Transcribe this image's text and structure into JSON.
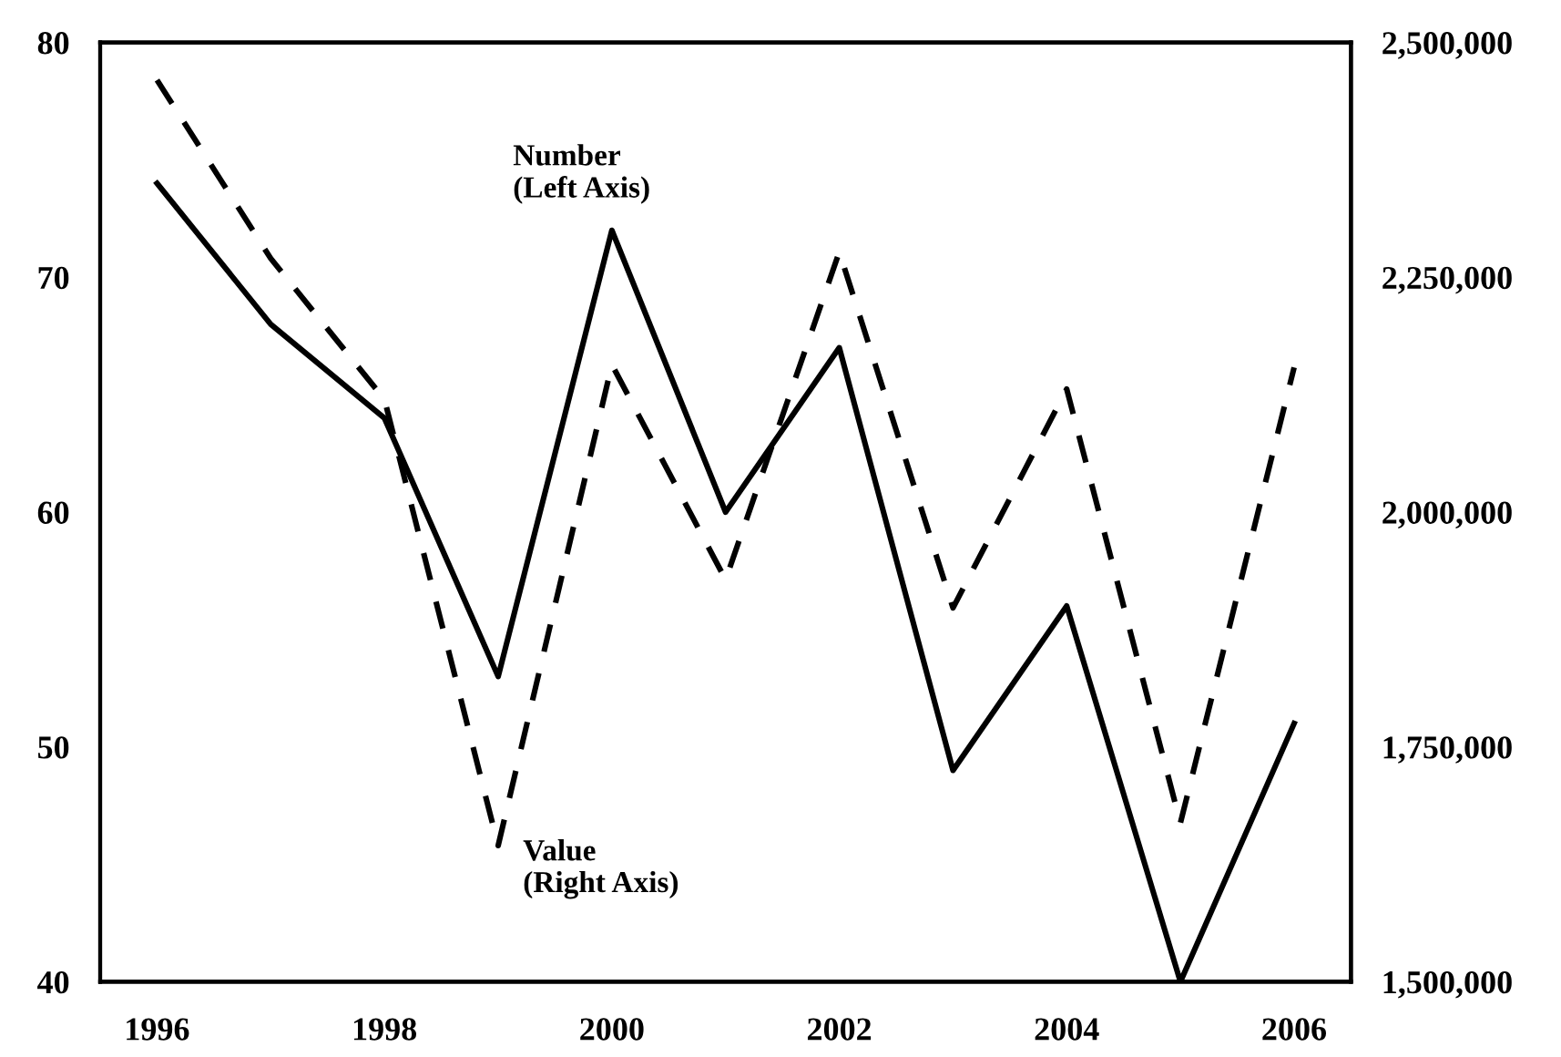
{
  "chart_data": {
    "type": "line",
    "x": [
      1996,
      1997,
      1998,
      1999,
      2000,
      2001,
      2002,
      2003,
      2004,
      2005,
      2006
    ],
    "series": [
      {
        "color": "#000000",
        "line_style": "solid",
        "values": [
          74,
          68,
          64,
          53,
          72,
          60,
          67,
          49,
          56,
          40,
          51
        ]
      },
      {
        "color": "#000000",
        "line_style": "dashed",
        "axis": "y2",
        "values": [
          2460000,
          2270000,
          2120000,
          1645000,
          2157000,
          1928000,
          2277000,
          1898000,
          2131000,
          1669000,
          2154000
        ]
      }
    ],
    "xlim": [
      1995.5,
      2006.5
    ],
    "xticks": [
      1996,
      1998,
      2000,
      2002,
      2004,
      2006
    ],
    "ylim": [
      40,
      80
    ],
    "yticks": [
      40,
      50,
      60,
      70,
      80
    ],
    "y2lim": [
      1500000,
      2500000
    ],
    "y2ticks": [
      {
        "value": 1500000,
        "label": "1,500,000"
      },
      {
        "value": 1750000,
        "label": "1,750,000"
      },
      {
        "value": 2000000,
        "label": "2,000,000"
      },
      {
        "value": 2250000,
        "label": "2,250,000"
      },
      {
        "value": 2500000,
        "label": "2,500,000"
      }
    ],
    "annotations": [
      "Number\n(Left Axis)",
      "Value\n(Right Axis)"
    ],
    "grid": false,
    "legend": false
  }
}
